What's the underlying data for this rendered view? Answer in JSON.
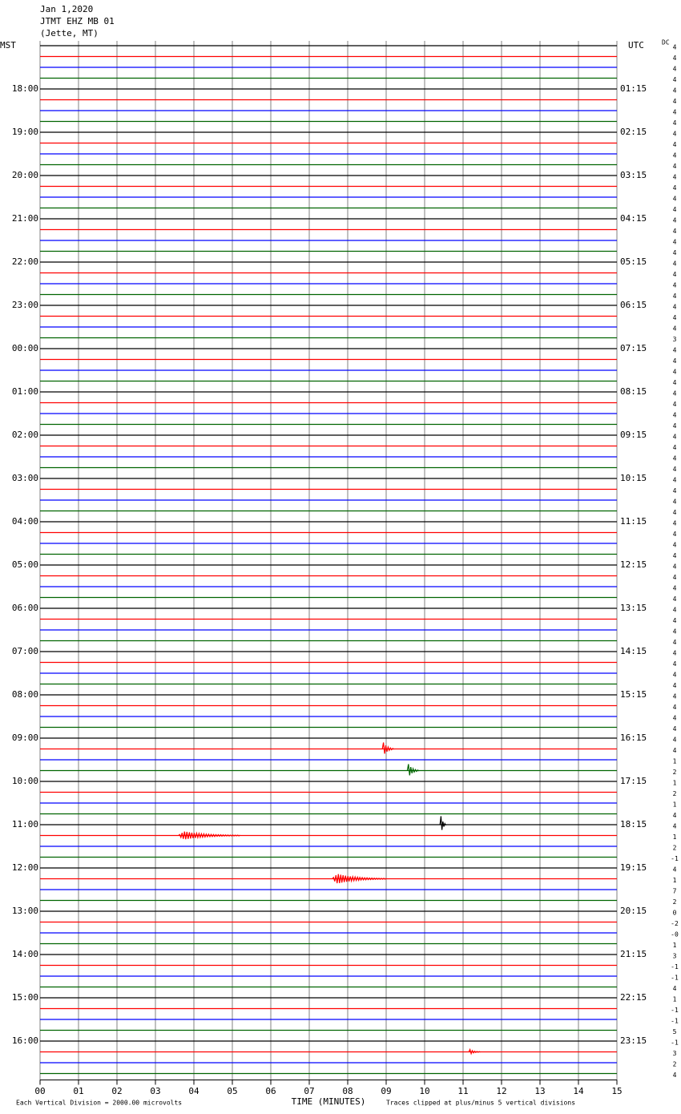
{
  "chart_data": {
    "type": "helicorder",
    "title": "Jan 1,2020",
    "subtitle": "JTMT EHZ MB 01",
    "location": "(Jette, MT)",
    "left_header": "MST",
    "right_header": "UTC",
    "dc_header": "DC",
    "left_labels": [
      "18:00",
      "19:00",
      "20:00",
      "21:00",
      "22:00",
      "23:00",
      "00:00",
      "01:00",
      "02:00",
      "03:00",
      "04:00",
      "05:00",
      "06:00",
      "07:00",
      "08:00",
      "09:00",
      "10:00",
      "11:00",
      "12:00",
      "13:00",
      "14:00",
      "15:00",
      "16:00"
    ],
    "right_labels": [
      "01:15",
      "02:15",
      "03:15",
      "04:15",
      "05:15",
      "06:15",
      "07:15",
      "08:15",
      "09:15",
      "10:15",
      "11:15",
      "12:15",
      "13:15",
      "14:15",
      "15:15",
      "16:15",
      "17:15",
      "18:15",
      "19:15",
      "20:15",
      "21:15",
      "22:15",
      "23:15"
    ],
    "trace_colors": [
      "#000000",
      "#ff0000",
      "#0000ff",
      "#006400"
    ],
    "dc_offsets": [
      "4",
      "4",
      "4",
      "4",
      "4",
      "4",
      "4",
      "4",
      "4",
      "4",
      "4",
      "4",
      "4",
      "4",
      "4",
      "4",
      "4",
      "4",
      "4",
      "4",
      "4",
      "4",
      "4",
      "4",
      "4",
      "4",
      "4",
      "3",
      "4",
      "4",
      "4",
      "4",
      "4",
      "4",
      "4",
      "4",
      "4",
      "4",
      "4",
      "4",
      "4",
      "4",
      "4",
      "4",
      "4",
      "4",
      "4",
      "4",
      "4",
      "4",
      "4",
      "4",
      "4",
      "4",
      "4",
      "4",
      "4",
      "4",
      "4",
      "4",
      "4",
      "4",
      "4",
      "4",
      "4",
      "4",
      "1",
      "2",
      "1",
      "2",
      "1",
      "4",
      "4",
      "1",
      "2",
      "-1",
      "4",
      "1",
      "7",
      "2",
      "0",
      "-2",
      "-0",
      "1",
      "3",
      "-1",
      "-1",
      "4",
      "1",
      "-1",
      "-1",
      "5",
      "-1",
      "3",
      "2",
      "4"
    ],
    "xlim": [
      0,
      15
    ],
    "xticks": [
      {
        "value": 0,
        "label": "00"
      },
      {
        "value": 1,
        "label": "01"
      },
      {
        "value": 2,
        "label": "02"
      },
      {
        "value": 3,
        "label": "03"
      },
      {
        "value": 4,
        "label": "04"
      },
      {
        "value": 5,
        "label": "05"
      },
      {
        "value": 6,
        "label": "06"
      },
      {
        "value": 7,
        "label": "07"
      },
      {
        "value": 8,
        "label": "08"
      },
      {
        "value": 9,
        "label": "09"
      },
      {
        "value": 10,
        "label": "10"
      },
      {
        "value": 11,
        "label": "11"
      },
      {
        "value": 12,
        "label": "12"
      },
      {
        "value": 13,
        "label": "13"
      },
      {
        "value": 14,
        "label": "14"
      },
      {
        "value": 15,
        "label": "15"
      }
    ],
    "xlabel": "TIME (MINUTES)",
    "footer_left": "Each Vertical Division = 2000.00 microvolts",
    "footer_right": "Traces clipped at plus/minus 5 vertical divisions",
    "grid": true,
    "events": [
      {
        "trace": 65,
        "start": 8.9,
        "duration": 0.3,
        "amplitude": 0.8
      },
      {
        "trace": 67,
        "start": 9.55,
        "duration": 0.3,
        "amplitude": 0.8
      },
      {
        "trace": 72,
        "start": 10.4,
        "duration": 0.15,
        "amplitude": 1.3
      },
      {
        "trace": 73,
        "start": 3.6,
        "duration": 1.6,
        "amplitude": 0.5
      },
      {
        "trace": 77,
        "start": 7.6,
        "duration": 1.4,
        "amplitude": 0.6
      },
      {
        "trace": 93,
        "start": 11.15,
        "duration": 0.3,
        "amplitude": 0.3
      }
    ]
  }
}
